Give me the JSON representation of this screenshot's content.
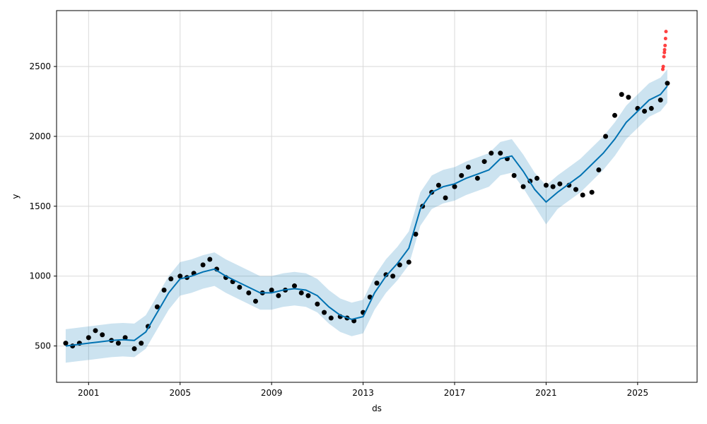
{
  "chart_data": {
    "type": "line",
    "title": "",
    "xlabel": "ds",
    "ylabel": "y",
    "xlim": [
      1999.6,
      2027.6
    ],
    "ylim": [
      240,
      2900
    ],
    "grid": true,
    "x_ticks": [
      2001,
      2005,
      2009,
      2013,
      2017,
      2021,
      2025
    ],
    "x_tick_labels": [
      "2001",
      "2005",
      "2009",
      "2013",
      "2017",
      "2021",
      "2025"
    ],
    "y_ticks": [
      500,
      1000,
      1500,
      2000,
      2500
    ],
    "y_tick_labels": [
      "500",
      "1000",
      "1500",
      "2000",
      "2500"
    ],
    "colors": {
      "observed": "#000000",
      "forecast_line": "#0072B2",
      "uncertainty_band": "#0072B2",
      "outliers": "#ff2020",
      "grid": "#d9d9d9"
    },
    "series": [
      {
        "kind": "observed",
        "marker": "dot",
        "x": [
          2000.0,
          2000.3,
          2000.6,
          2001.0,
          2001.3,
          2001.6,
          2002.0,
          2002.3,
          2002.6,
          2003.0,
          2003.3,
          2003.6,
          2004.0,
          2004.3,
          2004.6,
          2005.0,
          2005.3,
          2005.6,
          2006.0,
          2006.3,
          2006.6,
          2007.0,
          2007.3,
          2007.6,
          2008.0,
          2008.3,
          2008.6,
          2009.0,
          2009.3,
          2009.6,
          2010.0,
          2010.3,
          2010.6,
          2011.0,
          2011.3,
          2011.6,
          2012.0,
          2012.3,
          2012.6,
          2013.0,
          2013.3,
          2013.6,
          2014.0,
          2014.3,
          2014.6,
          2015.0,
          2015.3,
          2015.6,
          2016.0,
          2016.3,
          2016.6,
          2017.0,
          2017.3,
          2017.6,
          2018.0,
          2018.3,
          2018.6,
          2019.0,
          2019.3,
          2019.6,
          2020.0,
          2020.3,
          2020.6,
          2021.0,
          2021.3,
          2021.6,
          2022.0,
          2022.3,
          2022.6,
          2023.0,
          2023.3,
          2023.6,
          2024.0,
          2024.3,
          2024.6,
          2025.0,
          2025.3,
          2025.6,
          2026.0,
          2026.3
        ],
        "y": [
          520,
          500,
          520,
          560,
          610,
          580,
          540,
          520,
          560,
          480,
          520,
          640,
          780,
          900,
          980,
          1000,
          990,
          1020,
          1080,
          1120,
          1050,
          990,
          960,
          920,
          880,
          820,
          880,
          900,
          860,
          900,
          930,
          880,
          860,
          800,
          740,
          700,
          710,
          700,
          680,
          740,
          850,
          950,
          1010,
          1000,
          1080,
          1100,
          1300,
          1500,
          1600,
          1650,
          1560,
          1640,
          1720,
          1780,
          1700,
          1820,
          1880,
          1880,
          1840,
          1720,
          1640,
          1680,
          1700,
          1650,
          1640,
          1660,
          1650,
          1620,
          1580,
          1600,
          1760,
          2000,
          2150,
          2300,
          2280,
          2200,
          2180,
          2200,
          2260,
          2380
        ]
      },
      {
        "kind": "forecast",
        "x": [
          2000.0,
          2000.5,
          2001.0,
          2001.5,
          2002.0,
          2002.5,
          2003.0,
          2003.5,
          2004.0,
          2004.5,
          2005.0,
          2005.5,
          2006.0,
          2006.5,
          2007.0,
          2007.5,
          2008.0,
          2008.5,
          2009.0,
          2009.5,
          2010.0,
          2010.5,
          2011.0,
          2011.5,
          2012.0,
          2012.5,
          2013.0,
          2013.5,
          2014.0,
          2014.5,
          2015.0,
          2015.5,
          2016.0,
          2016.5,
          2017.0,
          2017.5,
          2018.0,
          2018.5,
          2019.0,
          2019.5,
          2020.0,
          2020.5,
          2021.0,
          2021.5,
          2022.0,
          2022.5,
          2023.0,
          2023.5,
          2024.0,
          2024.5,
          2025.0,
          2025.5,
          2026.0,
          2026.3
        ],
        "y": [
          500,
          510,
          520,
          530,
          540,
          545,
          540,
          600,
          740,
          880,
          980,
          1000,
          1030,
          1050,
          1000,
          960,
          920,
          880,
          880,
          900,
          910,
          900,
          860,
          780,
          720,
          690,
          710,
          880,
          1000,
          1090,
          1200,
          1480,
          1600,
          1640,
          1660,
          1700,
          1730,
          1760,
          1840,
          1860,
          1750,
          1620,
          1530,
          1600,
          1660,
          1720,
          1800,
          1880,
          1980,
          2100,
          2180,
          2260,
          2300,
          2360
        ]
      },
      {
        "kind": "upper_bound",
        "x": [
          2000.0,
          2000.5,
          2001.0,
          2001.5,
          2002.0,
          2002.5,
          2003.0,
          2003.5,
          2004.0,
          2004.5,
          2005.0,
          2005.5,
          2006.0,
          2006.5,
          2007.0,
          2007.5,
          2008.0,
          2008.5,
          2009.0,
          2009.5,
          2010.0,
          2010.5,
          2011.0,
          2011.5,
          2012.0,
          2012.5,
          2013.0,
          2013.5,
          2014.0,
          2014.5,
          2015.0,
          2015.5,
          2016.0,
          2016.5,
          2017.0,
          2017.5,
          2018.0,
          2018.5,
          2019.0,
          2019.5,
          2020.0,
          2020.5,
          2021.0,
          2021.5,
          2022.0,
          2022.5,
          2023.0,
          2023.5,
          2024.0,
          2024.5,
          2025.0,
          2025.5,
          2026.0,
          2026.3
        ],
        "y": [
          620,
          630,
          640,
          650,
          660,
          665,
          660,
          720,
          860,
          1000,
          1100,
          1120,
          1150,
          1170,
          1120,
          1080,
          1040,
          1000,
          1000,
          1020,
          1030,
          1020,
          980,
          900,
          840,
          810,
          830,
          1000,
          1120,
          1210,
          1320,
          1600,
          1720,
          1760,
          1780,
          1820,
          1850,
          1880,
          1960,
          1980,
          1870,
          1740,
          1650,
          1720,
          1780,
          1840,
          1920,
          2000,
          2100,
          2220,
          2300,
          2380,
          2420,
          2480
        ]
      },
      {
        "kind": "lower_bound",
        "x": [
          2000.0,
          2000.5,
          2001.0,
          2001.5,
          2002.0,
          2002.5,
          2003.0,
          2003.5,
          2004.0,
          2004.5,
          2005.0,
          2005.5,
          2006.0,
          2006.5,
          2007.0,
          2007.5,
          2008.0,
          2008.5,
          2009.0,
          2009.5,
          2010.0,
          2010.5,
          2011.0,
          2011.5,
          2012.0,
          2012.5,
          2013.0,
          2013.5,
          2014.0,
          2014.5,
          2015.0,
          2015.5,
          2016.0,
          2016.5,
          2017.0,
          2017.5,
          2018.0,
          2018.5,
          2019.0,
          2019.5,
          2020.0,
          2020.5,
          2021.0,
          2021.5,
          2022.0,
          2022.5,
          2023.0,
          2023.5,
          2024.0,
          2024.5,
          2025.0,
          2025.5,
          2026.0,
          2026.3
        ],
        "y": [
          380,
          390,
          400,
          410,
          420,
          425,
          420,
          480,
          620,
          760,
          860,
          880,
          910,
          930,
          880,
          840,
          800,
          760,
          760,
          780,
          790,
          780,
          740,
          660,
          600,
          570,
          590,
          760,
          880,
          970,
          1080,
          1360,
          1480,
          1520,
          1540,
          1580,
          1610,
          1640,
          1720,
          1740,
          1630,
          1500,
          1370,
          1480,
          1540,
          1600,
          1680,
          1760,
          1860,
          1980,
          2060,
          2140,
          2180,
          2240
        ]
      },
      {
        "kind": "outliers",
        "marker": "dot",
        "x": [
          2026.1,
          2026.12,
          2026.15,
          2026.17,
          2026.18,
          2026.2,
          2026.22,
          2026.24
        ],
        "y": [
          2480,
          2500,
          2570,
          2600,
          2620,
          2650,
          2700,
          2750
        ]
      }
    ]
  }
}
